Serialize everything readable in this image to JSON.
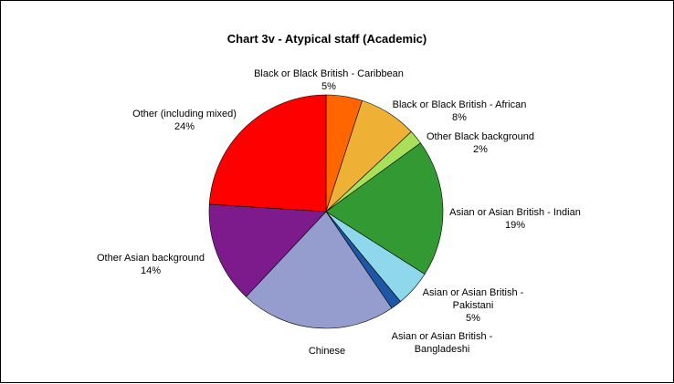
{
  "chart_data": {
    "type": "pie",
    "title": "Chart 3v - Atypical staff (Academic)",
    "start_angle_deg": 0,
    "direction": "clockwise",
    "slices": [
      {
        "label": "Black or Black British - Caribbean",
        "value": 5,
        "pct_label": "5%",
        "color": "#FF6600"
      },
      {
        "label": "Black or Black British - African",
        "value": 8,
        "pct_label": "8%",
        "color": "#EEB135"
      },
      {
        "label": "Other Black background",
        "value": 2,
        "pct_label": "2%",
        "color": "#A8E05A"
      },
      {
        "label": "Asian or Asian British - Indian",
        "value": 19,
        "pct_label": "19%",
        "color": "#339933"
      },
      {
        "label": "Asian or Asian British - Pakistani",
        "value": 5,
        "pct_label": "5%",
        "color": "#8FD7EA"
      },
      {
        "label": "Asian or Asian British - Bangladeshi",
        "value": 1.5,
        "pct_label": "",
        "color": "#1E56A8"
      },
      {
        "label": "Chinese",
        "value": 21.5,
        "pct_label": "",
        "color": "#959DCF"
      },
      {
        "label": "Other Asian background",
        "value": 14,
        "pct_label": "14%",
        "color": "#7D1A8C"
      },
      {
        "label": "Other (including mixed)",
        "value": 24,
        "pct_label": "24%",
        "color": "#FF0000"
      }
    ]
  }
}
